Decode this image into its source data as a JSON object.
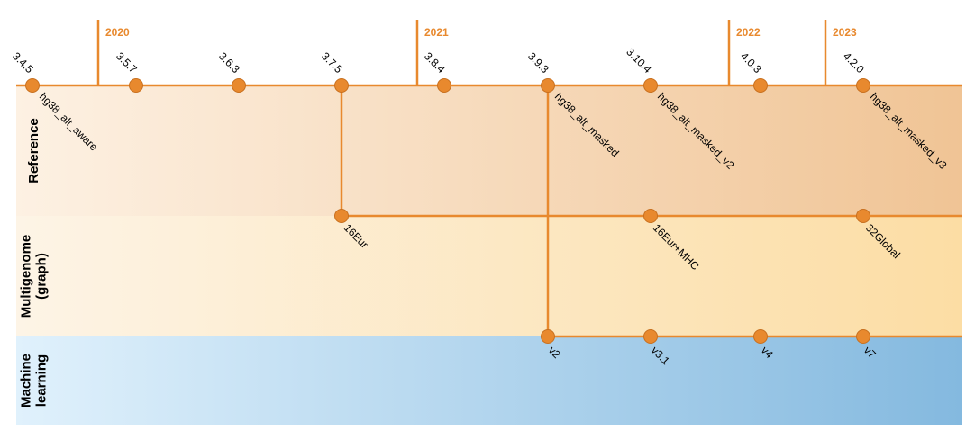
{
  "colors": {
    "accent": "#e8892e",
    "node": "#e8892e",
    "node_stroke": "#c8701f"
  },
  "lanes": [
    {
      "label": [
        "Reference"
      ],
      "colors": [
        "#fdf1e3",
        "#f0c495"
      ]
    },
    {
      "label": [
        "Multigenome",
        "(graph)"
      ],
      "colors": [
        "#fdf4e6",
        "#fcdda4"
      ]
    },
    {
      "label": [
        "Machine",
        "learning"
      ],
      "colors": [
        "#e0f1fc",
        "#84b9df"
      ]
    }
  ],
  "years": [
    "2020",
    "2021",
    "2022",
    "2023"
  ],
  "versions": [
    "3.4.5",
    "3.5.7",
    "3.6.3",
    "3.7.5",
    "3.8.4",
    "3.9.3",
    "3.10.4",
    "4.0.3",
    "4.2.0"
  ],
  "reference_nodes": [
    "hg38_alt_aware",
    "",
    "",
    "",
    "",
    "hg38_alt_masked",
    "hg38_alt_masked_v2",
    "",
    "hg38_alt_masked_v3"
  ],
  "multigenome_nodes": [
    "16Eur",
    "16Eur+MHC",
    "32Global"
  ],
  "ml_nodes": [
    "v2",
    "v3.1",
    "v4",
    "v7"
  ]
}
